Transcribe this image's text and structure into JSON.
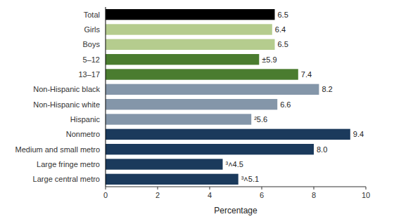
{
  "chart_data": {
    "type": "bar",
    "orientation": "horizontal",
    "categories": [
      "Large central metro",
      "Large fringe metro",
      "Medium and small metro",
      "Nonmetro",
      "Hispanic",
      "Non-Hispanic white",
      "Non-Hispanic black",
      "13–17",
      "5–12",
      "Boys",
      "Girls",
      "Total"
    ],
    "values": [
      5.1,
      4.5,
      8.0,
      9.4,
      5.6,
      6.6,
      8.2,
      7.4,
      5.9,
      6.5,
      6.4,
      6.5
    ],
    "data_labels": true,
    "value_labels": [
      "³˄5.1",
      "³˄4.5",
      "8.0",
      "9.4",
      "²5.6",
      "6.6",
      "8.2",
      "7.4",
      "±5.9",
      "6.5",
      "6.4",
      "6.5"
    ],
    "colors": [
      "#1b3a5c",
      "#1b3a5c",
      "#1b3a5c",
      "#1b3a5c",
      "#8496a9",
      "#8496a9",
      "#8496a9",
      "#4a7c2f",
      "#4a7c2f",
      "#b5cc8e",
      "#b5cc8e",
      "#000000"
    ],
    "xlabel": "Percentage",
    "xlim": [
      0,
      10
    ],
    "xticks": [
      0,
      2,
      4,
      6,
      8,
      10
    ],
    "grid": false
  }
}
